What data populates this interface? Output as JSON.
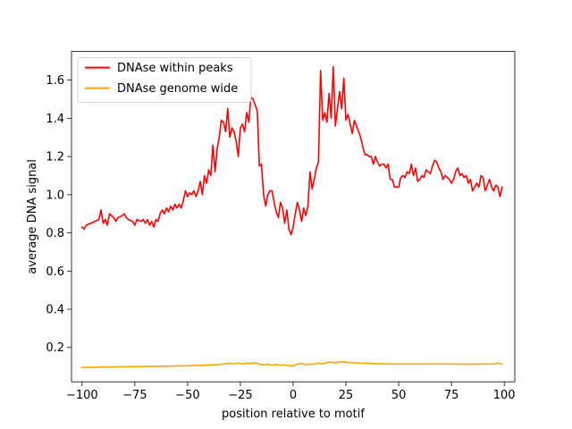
{
  "chart_data": {
    "type": "line",
    "title": "",
    "xlabel": "position relative to motif",
    "ylabel": "average DNA signal",
    "xlim": [
      -105,
      105
    ],
    "ylim": [
      0.02,
      1.75
    ],
    "xticks": [
      -100,
      -75,
      -50,
      -25,
      0,
      25,
      50,
      75,
      100
    ],
    "yticks": [
      0.2,
      0.4,
      0.6,
      0.8,
      1.0,
      1.2,
      1.4,
      1.6
    ],
    "xtick_labels": [
      "−100",
      "−75",
      "−50",
      "−25",
      "0",
      "25",
      "50",
      "75",
      "100"
    ],
    "ytick_labels": [
      "0.2",
      "0.4",
      "0.6",
      "0.8",
      "1.0",
      "1.2",
      "1.4",
      "1.6"
    ],
    "grid": false,
    "legend_position": "top-left",
    "series": [
      {
        "name": "DNAse within peaks",
        "color": "#ff0000",
        "points": [
          [
            -100,
            0.83
          ],
          [
            -99,
            0.82
          ],
          [
            -98,
            0.84
          ],
          [
            -96,
            0.85
          ],
          [
            -94,
            0.86
          ],
          [
            -92,
            0.87
          ],
          [
            -91,
            0.92
          ],
          [
            -90,
            0.85
          ],
          [
            -89,
            0.87
          ],
          [
            -88,
            0.84
          ],
          [
            -87,
            0.9
          ],
          [
            -85,
            0.88
          ],
          [
            -84,
            0.86
          ],
          [
            -83,
            0.88
          ],
          [
            -81,
            0.89
          ],
          [
            -80,
            0.9
          ],
          [
            -79,
            0.88
          ],
          [
            -78,
            0.87
          ],
          [
            -76,
            0.86
          ],
          [
            -75,
            0.84
          ],
          [
            -74,
            0.87
          ],
          [
            -72,
            0.86
          ],
          [
            -71,
            0.87
          ],
          [
            -70,
            0.85
          ],
          [
            -69,
            0.87
          ],
          [
            -68,
            0.84
          ],
          [
            -67,
            0.86
          ],
          [
            -66,
            0.83
          ],
          [
            -65,
            0.87
          ],
          [
            -64,
            0.86
          ],
          [
            -63,
            0.9
          ],
          [
            -62,
            0.92
          ],
          [
            -61,
            0.9
          ],
          [
            -60,
            0.93
          ],
          [
            -59,
            0.91
          ],
          [
            -58,
            0.94
          ],
          [
            -57,
            0.92
          ],
          [
            -56,
            0.95
          ],
          [
            -55,
            0.93
          ],
          [
            -54,
            0.95
          ],
          [
            -53,
            0.93
          ],
          [
            -52,
            0.97
          ],
          [
            -51,
            1.02
          ],
          [
            -50,
            0.99
          ],
          [
            -49,
            1.01
          ],
          [
            -48,
            1.0
          ],
          [
            -47,
            1.02
          ],
          [
            -46,
            0.99
          ],
          [
            -45,
            1.02
          ],
          [
            -44,
            1.07
          ],
          [
            -43,
            1.0
          ],
          [
            -42,
            1.1
          ],
          [
            -41,
            1.06
          ],
          [
            -40,
            1.13
          ],
          [
            -39,
            1.1
          ],
          [
            -38,
            1.26
          ],
          [
            -37,
            1.12
          ],
          [
            -36,
            1.24
          ],
          [
            -35,
            1.3
          ],
          [
            -34,
            1.39
          ],
          [
            -33,
            1.38
          ],
          [
            -32,
            1.33
          ],
          [
            -31,
            1.45
          ],
          [
            -30,
            1.3
          ],
          [
            -29,
            1.35
          ],
          [
            -28,
            1.33
          ],
          [
            -27,
            1.28
          ],
          [
            -26,
            1.2
          ],
          [
            -25,
            1.35
          ],
          [
            -24,
            1.37
          ],
          [
            -23,
            1.33
          ],
          [
            -22,
            1.43
          ],
          [
            -21,
            1.38
          ],
          [
            -20,
            1.51
          ],
          [
            -19,
            1.5
          ],
          [
            -18,
            1.47
          ],
          [
            -17,
            1.44
          ],
          [
            -16,
            1.15
          ],
          [
            -15,
            1.16
          ],
          [
            -14,
            1.0
          ],
          [
            -13,
            0.94
          ],
          [
            -12,
            1.0
          ],
          [
            -11,
            1.02
          ],
          [
            -10,
            1.02
          ],
          [
            -9,
            0.96
          ],
          [
            -8,
            0.91
          ],
          [
            -7,
            0.88
          ],
          [
            -6,
            0.96
          ],
          [
            -5,
            0.93
          ],
          [
            -4,
            0.85
          ],
          [
            -3,
            0.92
          ],
          [
            -2,
            0.82
          ],
          [
            -1,
            0.79
          ],
          [
            0,
            0.83
          ],
          [
            1,
            0.9
          ],
          [
            2,
            0.96
          ],
          [
            3,
            0.92
          ],
          [
            4,
            0.86
          ],
          [
            5,
            0.93
          ],
          [
            6,
            0.89
          ],
          [
            7,
            0.94
          ],
          [
            8,
            1.12
          ],
          [
            9,
            1.03
          ],
          [
            10,
            1.08
          ],
          [
            11,
            1.14
          ],
          [
            12,
            1.17
          ],
          [
            13,
            1.65
          ],
          [
            14,
            1.39
          ],
          [
            15,
            1.43
          ],
          [
            16,
            1.38
          ],
          [
            17,
            1.53
          ],
          [
            18,
            1.4
          ],
          [
            19,
            1.67
          ],
          [
            20,
            1.36
          ],
          [
            21,
            1.45
          ],
          [
            22,
            1.54
          ],
          [
            23,
            1.45
          ],
          [
            24,
            1.61
          ],
          [
            25,
            1.39
          ],
          [
            26,
            1.42
          ],
          [
            27,
            1.37
          ],
          [
            28,
            1.32
          ],
          [
            29,
            1.39
          ],
          [
            30,
            1.36
          ],
          [
            31,
            1.33
          ],
          [
            32,
            1.3
          ],
          [
            33,
            1.25
          ],
          [
            34,
            1.21
          ],
          [
            35,
            1.21
          ],
          [
            36,
            1.2
          ],
          [
            37,
            1.2
          ],
          [
            38,
            1.16
          ],
          [
            39,
            1.2
          ],
          [
            40,
            1.17
          ],
          [
            41,
            1.15
          ],
          [
            42,
            1.16
          ],
          [
            43,
            1.16
          ],
          [
            44,
            1.14
          ],
          [
            45,
            1.16
          ],
          [
            46,
            1.08
          ],
          [
            47,
            1.08
          ],
          [
            48,
            1.04
          ],
          [
            49,
            1.04
          ],
          [
            50,
            1.04
          ],
          [
            51,
            1.09
          ],
          [
            52,
            1.1
          ],
          [
            53,
            1.09
          ],
          [
            54,
            1.12
          ],
          [
            55,
            1.11
          ],
          [
            56,
            1.16
          ],
          [
            57,
            1.1
          ],
          [
            58,
            1.14
          ],
          [
            59,
            1.07
          ],
          [
            60,
            1.08
          ],
          [
            61,
            1.1
          ],
          [
            62,
            1.09
          ],
          [
            63,
            1.13
          ],
          [
            64,
            1.12
          ],
          [
            65,
            1.11
          ],
          [
            66,
            1.15
          ],
          [
            67,
            1.18
          ],
          [
            68,
            1.17
          ],
          [
            69,
            1.14
          ],
          [
            70,
            1.12
          ],
          [
            71,
            1.08
          ],
          [
            72,
            1.1
          ],
          [
            73,
            1.09
          ],
          [
            74,
            1.08
          ],
          [
            75,
            1.06
          ],
          [
            76,
            1.08
          ],
          [
            77,
            1.12
          ],
          [
            78,
            1.14
          ],
          [
            79,
            1.1
          ],
          [
            80,
            1.11
          ],
          [
            81,
            1.09
          ],
          [
            82,
            1.1
          ],
          [
            83,
            1.06
          ],
          [
            84,
            1.08
          ],
          [
            85,
            1.02
          ],
          [
            86,
            1.04
          ],
          [
            87,
            1.06
          ],
          [
            88,
            1.04
          ],
          [
            89,
            1.1
          ],
          [
            90,
            1.09
          ],
          [
            91,
            1.02
          ],
          [
            92,
            1.05
          ],
          [
            93,
            1.08
          ],
          [
            94,
            1.04
          ],
          [
            95,
            1.02
          ],
          [
            96,
            1.05
          ],
          [
            97,
            1.04
          ],
          [
            98,
            0.99
          ],
          [
            99,
            1.04
          ]
        ]
      },
      {
        "name": "DNAse genome wide",
        "color": "#ffa500",
        "points": [
          [
            -100,
            0.095
          ],
          [
            -95,
            0.096
          ],
          [
            -90,
            0.097
          ],
          [
            -85,
            0.097
          ],
          [
            -80,
            0.099
          ],
          [
            -75,
            0.099
          ],
          [
            -70,
            0.1
          ],
          [
            -65,
            0.101
          ],
          [
            -60,
            0.102
          ],
          [
            -55,
            0.103
          ],
          [
            -50,
            0.104
          ],
          [
            -45,
            0.106
          ],
          [
            -40,
            0.108
          ],
          [
            -35,
            0.11
          ],
          [
            -30,
            0.117
          ],
          [
            -28,
            0.114
          ],
          [
            -26,
            0.118
          ],
          [
            -24,
            0.112
          ],
          [
            -22,
            0.118
          ],
          [
            -20,
            0.115
          ],
          [
            -18,
            0.12
          ],
          [
            -16,
            0.112
          ],
          [
            -14,
            0.109
          ],
          [
            -12,
            0.112
          ],
          [
            -10,
            0.107
          ],
          [
            -8,
            0.111
          ],
          [
            -6,
            0.106
          ],
          [
            -4,
            0.109
          ],
          [
            -2,
            0.104
          ],
          [
            0,
            0.103
          ],
          [
            2,
            0.112
          ],
          [
            4,
            0.117
          ],
          [
            6,
            0.109
          ],
          [
            8,
            0.113
          ],
          [
            10,
            0.112
          ],
          [
            12,
            0.118
          ],
          [
            14,
            0.114
          ],
          [
            16,
            0.121
          ],
          [
            18,
            0.123
          ],
          [
            20,
            0.119
          ],
          [
            22,
            0.124
          ],
          [
            24,
            0.126
          ],
          [
            26,
            0.12
          ],
          [
            28,
            0.121
          ],
          [
            30,
            0.118
          ],
          [
            35,
            0.117
          ],
          [
            40,
            0.115
          ],
          [
            45,
            0.114
          ],
          [
            50,
            0.113
          ],
          [
            55,
            0.113
          ],
          [
            60,
            0.113
          ],
          [
            65,
            0.114
          ],
          [
            70,
            0.114
          ],
          [
            75,
            0.113
          ],
          [
            80,
            0.112
          ],
          [
            85,
            0.112
          ],
          [
            90,
            0.113
          ],
          [
            95,
            0.113
          ],
          [
            97,
            0.118
          ],
          [
            99,
            0.112
          ]
        ]
      }
    ]
  }
}
